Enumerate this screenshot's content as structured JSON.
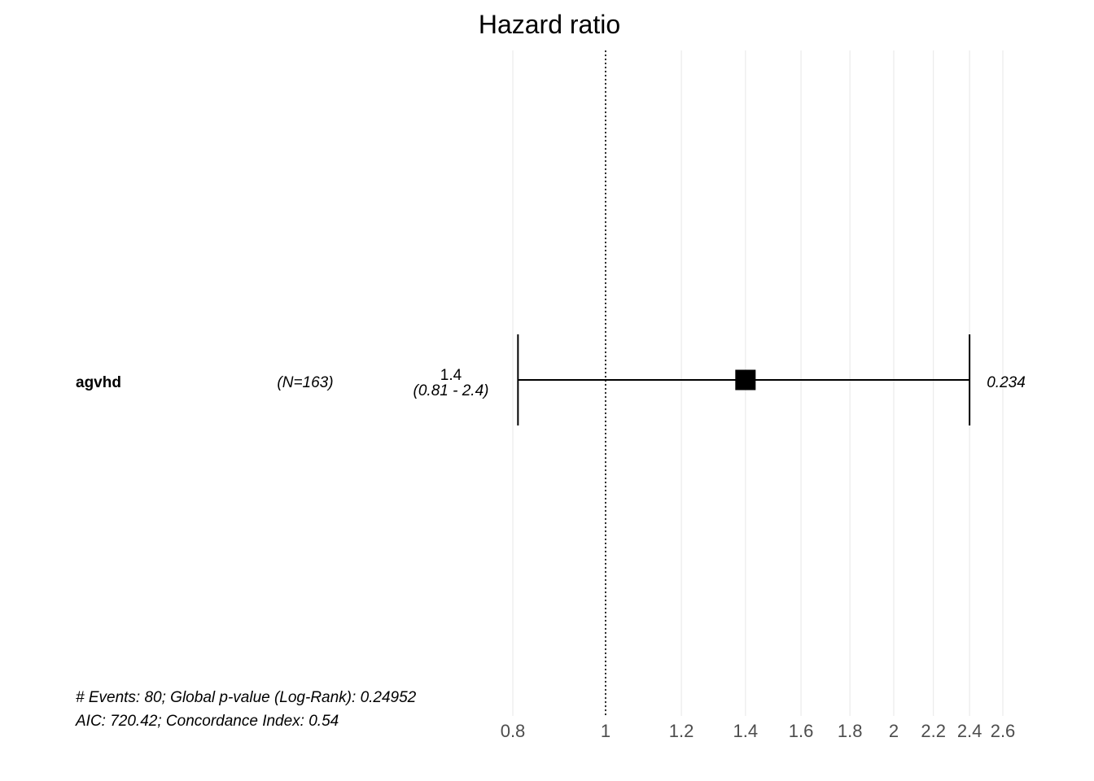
{
  "chart_data": {
    "type": "forest",
    "title": "Hazard ratio",
    "x_scale": "log",
    "xlim": [
      0.8,
      2.6
    ],
    "x_ticks": [
      0.8,
      1,
      1.2,
      1.4,
      1.6,
      1.8,
      2,
      2.2,
      2.4,
      2.6
    ],
    "tick_labels": [
      "0.8",
      "1",
      "1.2",
      "1.4",
      "1.6",
      "1.8",
      "2",
      "2.2",
      "2.4",
      "2.6"
    ],
    "reference_line": 1,
    "grid": true,
    "rows": [
      {
        "variable": "agvhd",
        "n_label": "(N=163)",
        "hr": 1.4,
        "ci_low": 0.81,
        "ci_high": 2.4,
        "hr_label": "1.4",
        "ci_label": "(0.81 - 2.4)",
        "p_label": "0.234"
      }
    ],
    "footer": [
      "# Events: 80; Global p-value (Log-Rank): 0.24952",
      "AIC: 720.42; Concordance Index: 0.54"
    ]
  }
}
